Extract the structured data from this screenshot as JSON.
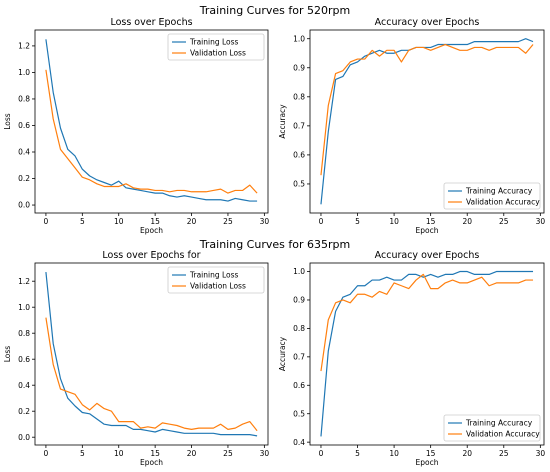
{
  "rows": [
    {
      "suptitle": "Training Curves for 520rpm"
    },
    {
      "suptitle": "Training Curves for 635rpm"
    }
  ],
  "colors": {
    "training": "#1f77b4",
    "validation": "#ff7f0e"
  },
  "chart_data": [
    {
      "type": "line",
      "title": "Loss over Epochs",
      "xlabel": "Epoch",
      "ylabel": "Loss",
      "xlim": [
        -1.5,
        30.5
      ],
      "ylim": [
        -0.06,
        1.32
      ],
      "xticks": [
        0,
        5,
        10,
        15,
        20,
        25,
        30
      ],
      "yticks": [
        0.0,
        0.2,
        0.4,
        0.6,
        0.8,
        1.0,
        1.2
      ],
      "legend_loc": "upper right",
      "x": [
        0,
        1,
        2,
        3,
        4,
        5,
        6,
        7,
        8,
        9,
        10,
        11,
        12,
        13,
        14,
        15,
        16,
        17,
        18,
        19,
        20,
        21,
        22,
        23,
        24,
        25,
        26,
        27,
        28,
        29
      ],
      "series": [
        {
          "name": "Training Loss",
          "color": "#1f77b4",
          "values": [
            1.25,
            0.85,
            0.58,
            0.42,
            0.37,
            0.27,
            0.22,
            0.19,
            0.17,
            0.15,
            0.18,
            0.13,
            0.12,
            0.11,
            0.1,
            0.09,
            0.09,
            0.07,
            0.06,
            0.07,
            0.06,
            0.05,
            0.04,
            0.04,
            0.04,
            0.03,
            0.05,
            0.04,
            0.03,
            0.03
          ]
        },
        {
          "name": "Validation Loss",
          "color": "#ff7f0e",
          "values": [
            1.02,
            0.65,
            0.42,
            0.35,
            0.28,
            0.21,
            0.19,
            0.16,
            0.14,
            0.14,
            0.14,
            0.16,
            0.13,
            0.12,
            0.12,
            0.11,
            0.11,
            0.1,
            0.11,
            0.11,
            0.1,
            0.1,
            0.1,
            0.11,
            0.12,
            0.09,
            0.11,
            0.11,
            0.15,
            0.09
          ]
        }
      ]
    },
    {
      "type": "line",
      "title": "Accuracy over Epochs",
      "xlabel": "Epoch",
      "ylabel": "Accuracy",
      "xlim": [
        -1.5,
        30.5
      ],
      "ylim": [
        0.4,
        1.03
      ],
      "xticks": [
        0,
        5,
        10,
        15,
        20,
        25,
        30
      ],
      "yticks": [
        0.5,
        0.6,
        0.7,
        0.8,
        0.9,
        1.0
      ],
      "legend_loc": "lower right",
      "x": [
        0,
        1,
        2,
        3,
        4,
        5,
        6,
        7,
        8,
        9,
        10,
        11,
        12,
        13,
        14,
        15,
        16,
        17,
        18,
        19,
        20,
        21,
        22,
        23,
        24,
        25,
        26,
        27,
        28,
        29
      ],
      "series": [
        {
          "name": "Training Accuracy",
          "color": "#1f77b4",
          "values": [
            0.43,
            0.68,
            0.86,
            0.87,
            0.91,
            0.92,
            0.94,
            0.95,
            0.96,
            0.95,
            0.95,
            0.96,
            0.96,
            0.97,
            0.97,
            0.97,
            0.98,
            0.98,
            0.98,
            0.98,
            0.98,
            0.99,
            0.99,
            0.99,
            0.99,
            0.99,
            0.99,
            0.99,
            1.0,
            0.99
          ]
        },
        {
          "name": "Validation Accuracy",
          "color": "#ff7f0e",
          "values": [
            0.53,
            0.77,
            0.88,
            0.89,
            0.92,
            0.93,
            0.93,
            0.96,
            0.94,
            0.96,
            0.96,
            0.92,
            0.96,
            0.97,
            0.97,
            0.96,
            0.97,
            0.98,
            0.97,
            0.96,
            0.96,
            0.97,
            0.97,
            0.96,
            0.97,
            0.97,
            0.97,
            0.97,
            0.95,
            0.98
          ]
        }
      ]
    },
    {
      "type": "line",
      "title": "Loss over Epochs for",
      "xlabel": "Epoch",
      "ylabel": "Loss",
      "xlim": [
        -1.5,
        30.5
      ],
      "ylim": [
        -0.06,
        1.34
      ],
      "xticks": [
        0,
        5,
        10,
        15,
        20,
        25,
        30
      ],
      "yticks": [
        0.0,
        0.2,
        0.4,
        0.6,
        0.8,
        1.0,
        1.2
      ],
      "legend_loc": "upper right",
      "x": [
        0,
        1,
        2,
        3,
        4,
        5,
        6,
        7,
        8,
        9,
        10,
        11,
        12,
        13,
        14,
        15,
        16,
        17,
        18,
        19,
        20,
        21,
        22,
        23,
        24,
        25,
        26,
        27,
        28,
        29
      ],
      "series": [
        {
          "name": "Training Loss",
          "color": "#1f77b4",
          "values": [
            1.27,
            0.72,
            0.45,
            0.3,
            0.24,
            0.19,
            0.18,
            0.14,
            0.1,
            0.09,
            0.09,
            0.09,
            0.06,
            0.06,
            0.05,
            0.04,
            0.06,
            0.05,
            0.04,
            0.03,
            0.03,
            0.03,
            0.03,
            0.03,
            0.02,
            0.02,
            0.02,
            0.02,
            0.02,
            0.01
          ]
        },
        {
          "name": "Validation Loss",
          "color": "#ff7f0e",
          "values": [
            0.92,
            0.56,
            0.37,
            0.35,
            0.33,
            0.25,
            0.21,
            0.26,
            0.22,
            0.2,
            0.12,
            0.12,
            0.12,
            0.07,
            0.08,
            0.07,
            0.11,
            0.1,
            0.09,
            0.07,
            0.06,
            0.07,
            0.07,
            0.07,
            0.1,
            0.06,
            0.07,
            0.1,
            0.12,
            0.05
          ]
        }
      ]
    },
    {
      "type": "line",
      "title": "Accuracy over Epochs",
      "xlabel": "Epoch",
      "ylabel": "Accuracy",
      "xlim": [
        -1.5,
        30.5
      ],
      "ylim": [
        0.39,
        1.03
      ],
      "xticks": [
        0,
        5,
        10,
        15,
        20,
        25,
        30
      ],
      "yticks": [
        0.4,
        0.5,
        0.6,
        0.7,
        0.8,
        0.9,
        1.0
      ],
      "legend_loc": "lower right",
      "x": [
        0,
        1,
        2,
        3,
        4,
        5,
        6,
        7,
        8,
        9,
        10,
        11,
        12,
        13,
        14,
        15,
        16,
        17,
        18,
        19,
        20,
        21,
        22,
        23,
        24,
        25,
        26,
        27,
        28,
        29
      ],
      "series": [
        {
          "name": "Training Accuracy",
          "color": "#1f77b4",
          "values": [
            0.42,
            0.72,
            0.86,
            0.91,
            0.92,
            0.95,
            0.95,
            0.97,
            0.97,
            0.98,
            0.97,
            0.97,
            0.99,
            0.99,
            0.98,
            0.99,
            0.98,
            0.99,
            0.99,
            1.0,
            1.0,
            0.99,
            0.99,
            0.99,
            1.0,
            1.0,
            1.0,
            1.0,
            1.0,
            1.0
          ]
        },
        {
          "name": "Validation Accuracy",
          "color": "#ff7f0e",
          "values": [
            0.65,
            0.83,
            0.89,
            0.9,
            0.89,
            0.92,
            0.92,
            0.91,
            0.93,
            0.92,
            0.96,
            0.95,
            0.94,
            0.97,
            0.99,
            0.94,
            0.94,
            0.96,
            0.97,
            0.96,
            0.96,
            0.97,
            0.98,
            0.95,
            0.96,
            0.96,
            0.96,
            0.96,
            0.97,
            0.97
          ]
        }
      ]
    }
  ]
}
